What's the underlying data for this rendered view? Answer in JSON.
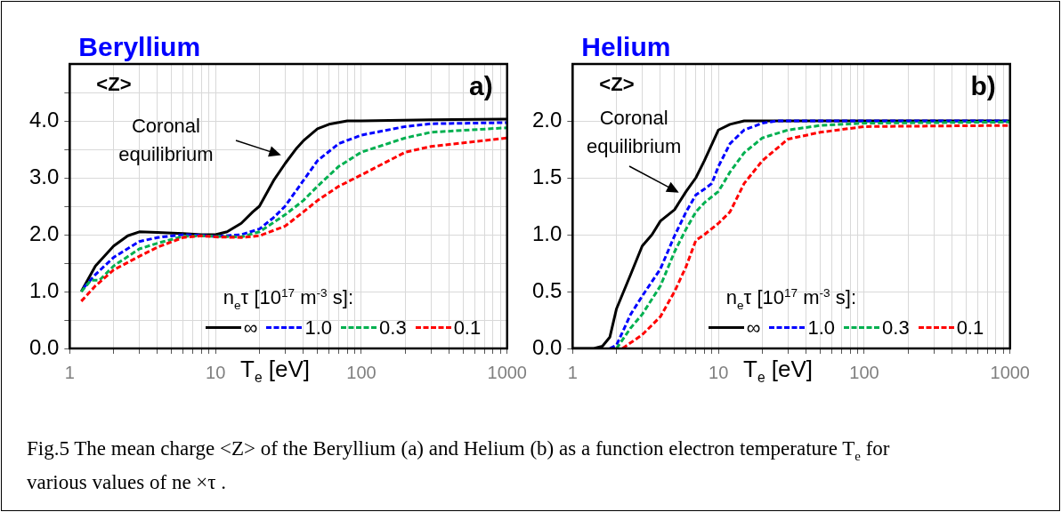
{
  "chart_data": [
    {
      "type": "line",
      "title": "Beryllium",
      "ylabel": "<Z>",
      "xlabel": "T$_{e}$ [eV]",
      "legend_title": "n$_{e}$τ  [10$^{17}$ m$^{-3}$ s]:",
      "legend": "bottom right",
      "log": "x",
      "grid": true,
      "marker": "none",
      "xlim": [
        1,
        1000
      ],
      "xticks": [
        1,
        {
          "value": 2,
          "label": null
        },
        {
          "value": 3,
          "label": null
        },
        {
          "value": 4,
          "label": null
        },
        {
          "value": 5,
          "label": null
        },
        {
          "value": 6,
          "label": null
        },
        {
          "value": 7,
          "label": null
        },
        {
          "value": 8,
          "label": null
        },
        {
          "value": 9,
          "label": null
        },
        10,
        {
          "value": 20,
          "label": null
        },
        {
          "value": 30,
          "label": null
        },
        {
          "value": 40,
          "label": null
        },
        {
          "value": 50,
          "label": null
        },
        {
          "value": 60,
          "label": null
        },
        {
          "value": 70,
          "label": null
        },
        {
          "value": 80,
          "label": null
        },
        {
          "value": 90,
          "label": null
        },
        100,
        {
          "value": 200,
          "label": null
        },
        {
          "value": 300,
          "label": null
        },
        {
          "value": 400,
          "label": null
        },
        {
          "value": 500,
          "label": null
        },
        {
          "value": 600,
          "label": null
        },
        {
          "value": 700,
          "label": null
        },
        {
          "value": 800,
          "label": null
        },
        {
          "value": 900,
          "label": null
        },
        1000
      ],
      "ylim": [
        0,
        5
      ],
      "yticks": [
        {
          "value": 0,
          "label": "0.0"
        },
        {
          "value": 0.5,
          "label": null
        },
        {
          "value": 1,
          "label": "1.0"
        },
        {
          "value": 1.5,
          "label": null
        },
        {
          "value": 2,
          "label": "2.0"
        },
        {
          "value": 2.5,
          "label": null
        },
        {
          "value": 3,
          "label": "3.0"
        },
        {
          "value": 3.5,
          "label": null
        },
        {
          "value": 4,
          "label": "4.0"
        },
        {
          "value": 4.5,
          "label": null
        }
      ],
      "annotations": [
        "Coronal equilibrium",
        "a)",
        "Fig.5 The mean charge <Z>  of the Beryllium (a) and Helium (b) as a function electron temperature T$_{e}$ for various values of ne ×τ ."
      ],
      "series": [
        {
          "name": "∞",
          "color": "#000000",
          "line_style": "solid",
          "x": [
            1.2,
            1.5,
            2,
            2.5,
            3,
            4,
            6,
            8,
            10,
            12,
            15,
            18,
            20,
            25,
            30,
            36,
            40,
            50,
            60,
            80,
            100,
            300,
            1000
          ],
          "values": [
            1.0,
            1.45,
            1.8,
            1.98,
            2.05,
            2.04,
            2.02,
            2.0,
            2.0,
            2.05,
            2.2,
            2.4,
            2.5,
            2.95,
            3.25,
            3.52,
            3.65,
            3.86,
            3.94,
            4.0,
            4.0,
            4.02,
            4.03
          ]
        },
        {
          "name": "1.0",
          "color": "#0000ff",
          "line_style": "dashed",
          "x": [
            1.25,
            1.5,
            2,
            3,
            4,
            6,
            8,
            10,
            15,
            20,
            25,
            30,
            40,
            50,
            70,
            100,
            200,
            300,
            1000
          ],
          "values": [
            1.07,
            1.3,
            1.6,
            1.88,
            1.95,
            2.0,
            1.99,
            1.97,
            2.0,
            2.1,
            2.3,
            2.5,
            2.95,
            3.3,
            3.6,
            3.75,
            3.9,
            3.95,
            3.97
          ]
        },
        {
          "name": "0.3",
          "color": "#00b050",
          "line_style": "dashed",
          "x": [
            1.2,
            1.4,
            1.6,
            2,
            3,
            4,
            6,
            8,
            10,
            15,
            20,
            30,
            40,
            50,
            70,
            100,
            200,
            300,
            1000
          ],
          "values": [
            1.0,
            1.2,
            1.2,
            1.45,
            1.75,
            1.85,
            1.97,
            1.98,
            1.97,
            1.96,
            2.05,
            2.35,
            2.6,
            2.85,
            3.2,
            3.45,
            3.7,
            3.8,
            3.88
          ]
        },
        {
          "name": "0.1",
          "color": "#ff0000",
          "line_style": "dashed",
          "x": [
            1.2,
            1.5,
            2,
            3,
            4,
            6,
            8,
            10,
            15,
            20,
            30,
            40,
            50,
            70,
            100,
            200,
            300,
            1000
          ],
          "values": [
            0.83,
            1.1,
            1.38,
            1.62,
            1.78,
            1.95,
            1.98,
            1.96,
            1.95,
            1.98,
            2.15,
            2.4,
            2.6,
            2.85,
            3.05,
            3.45,
            3.55,
            3.7
          ]
        }
      ]
    },
    {
      "type": "line",
      "title": "Helium",
      "ylabel": "<Z>",
      "xlabel": "T$_{e}$ [eV]",
      "legend_title": "n$_{e}$τ  [10$^{17}$ m$^{-3}$ s]:",
      "legend": "bottom right",
      "log": "x",
      "grid": true,
      "marker": "none",
      "xlim": [
        1,
        1000
      ],
      "xticks": [
        1,
        {
          "value": 2,
          "label": null
        },
        {
          "value": 3,
          "label": null
        },
        {
          "value": 4,
          "label": null
        },
        {
          "value": 5,
          "label": null
        },
        {
          "value": 6,
          "label": null
        },
        {
          "value": 7,
          "label": null
        },
        {
          "value": 8,
          "label": null
        },
        {
          "value": 9,
          "label": null
        },
        10,
        {
          "value": 20,
          "label": null
        },
        {
          "value": 30,
          "label": null
        },
        {
          "value": 40,
          "label": null
        },
        {
          "value": 50,
          "label": null
        },
        {
          "value": 60,
          "label": null
        },
        {
          "value": 70,
          "label": null
        },
        {
          "value": 80,
          "label": null
        },
        {
          "value": 90,
          "label": null
        },
        100,
        {
          "value": 200,
          "label": null
        },
        {
          "value": 300,
          "label": null
        },
        {
          "value": 400,
          "label": null
        },
        {
          "value": 500,
          "label": null
        },
        {
          "value": 600,
          "label": null
        },
        {
          "value": 700,
          "label": null
        },
        {
          "value": 800,
          "label": null
        },
        {
          "value": 900,
          "label": null
        },
        1000
      ],
      "ylim": [
        0,
        2.5
      ],
      "yticks": [
        {
          "value": 0,
          "label": "0.0"
        },
        0.5,
        {
          "value": 1,
          "label": "1.0"
        },
        1.5,
        {
          "value": 2,
          "label": "2.0"
        }
      ],
      "annotations": [
        "Coronal equilibrium",
        "b)"
      ],
      "series": [
        {
          "name": "∞",
          "color": "#000000",
          "line_style": "solid",
          "x": [
            1,
            1.4,
            1.6,
            1.8,
            2,
            2.5,
            3,
            3.5,
            4,
            5,
            6,
            7,
            8,
            10,
            12,
            15,
            1000
          ],
          "values": [
            0,
            0,
            0.02,
            0.1,
            0.35,
            0.65,
            0.9,
            1.0,
            1.12,
            1.22,
            1.38,
            1.5,
            1.65,
            1.92,
            1.97,
            2.0,
            2.0
          ]
        },
        {
          "name": "1.0",
          "color": "#0000ff",
          "line_style": "dashed",
          "x": [
            1.8,
            2,
            2.5,
            3,
            4,
            5,
            6,
            7,
            8,
            9,
            10,
            12,
            15,
            20,
            25,
            1000
          ],
          "values": [
            0,
            0.03,
            0.3,
            0.46,
            0.7,
            0.99,
            1.2,
            1.35,
            1.4,
            1.45,
            1.6,
            1.8,
            1.92,
            1.98,
            2.0,
            2.0
          ]
        },
        {
          "name": "0.3",
          "color": "#00b050",
          "line_style": "dashed",
          "x": [
            2,
            2.5,
            3,
            4,
            5,
            6,
            7,
            8,
            10,
            12,
            15,
            20,
            30,
            50,
            100,
            1000
          ],
          "values": [
            0,
            0.18,
            0.3,
            0.55,
            0.85,
            1.05,
            1.2,
            1.28,
            1.38,
            1.55,
            1.72,
            1.85,
            1.92,
            1.96,
            1.98,
            1.99
          ]
        },
        {
          "name": "0.1",
          "color": "#ff0000",
          "line_style": "dashed",
          "x": [
            2.2,
            2.5,
            3,
            4,
            5,
            6,
            7,
            8,
            10,
            12,
            15,
            20,
            30,
            50,
            100,
            1000
          ],
          "values": [
            0,
            0.05,
            0.12,
            0.28,
            0.5,
            0.72,
            0.95,
            1.0,
            1.1,
            1.2,
            1.45,
            1.65,
            1.84,
            1.9,
            1.95,
            1.96
          ]
        }
      ]
    }
  ]
}
